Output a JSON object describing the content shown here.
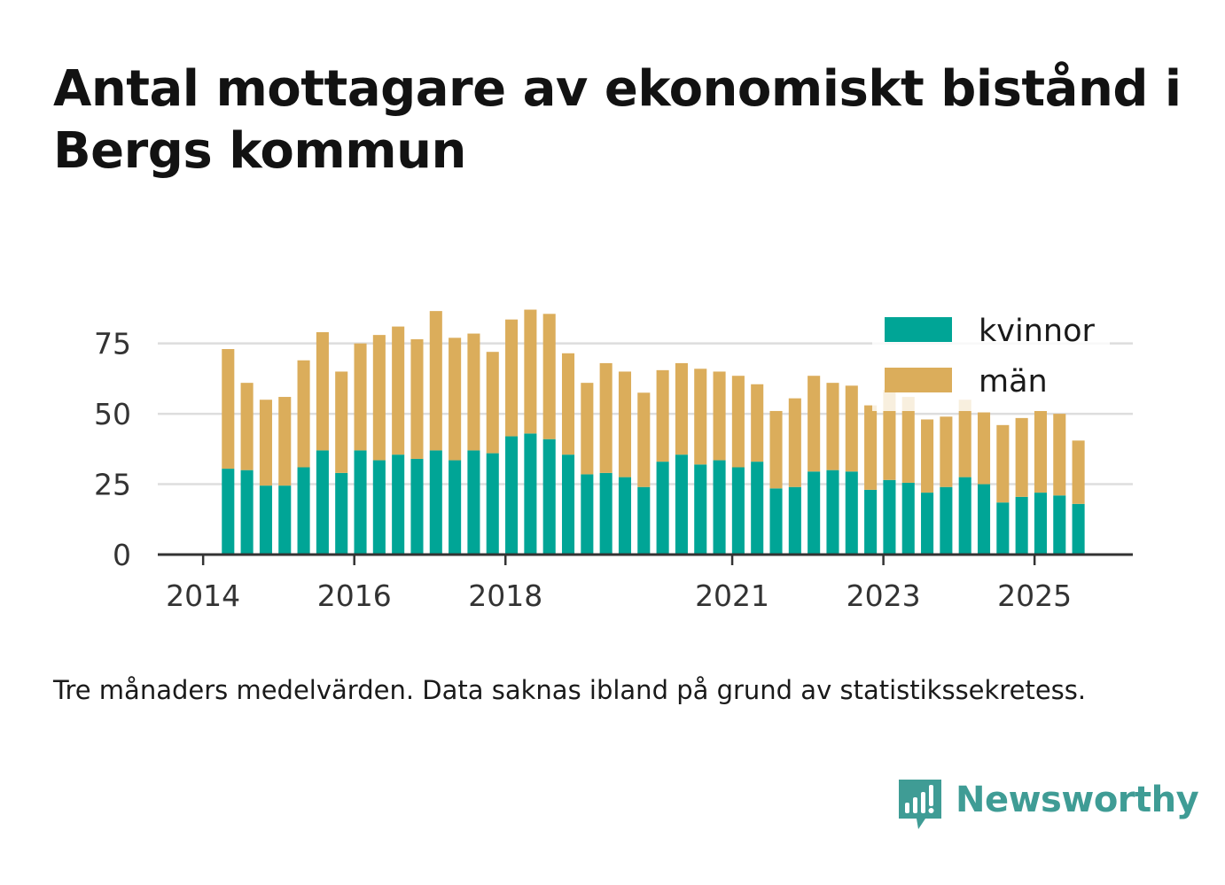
{
  "title": "Antal mottagare av ekonomiskt bistånd i Bergs kommun",
  "footnote": "Tre månaders medelvärden. Data saknas ibland på grund av statistikssekretess.",
  "brand": {
    "name": "Newsworthy",
    "icon": "newsworthy-logo-icon",
    "color": "#3f9c95"
  },
  "chart_data": {
    "type": "bar",
    "stacked": true,
    "title": "Antal mottagare av ekonomiskt bistånd i Bergs kommun",
    "xlabel": "",
    "ylabel": "",
    "ylim": [
      0,
      90
    ],
    "yticks": [
      0,
      25,
      50,
      75
    ],
    "grid": true,
    "legend_position": "top-right",
    "x_tick_labels": [
      {
        "label": "2014",
        "x": 2014.0
      },
      {
        "label": "2016",
        "x": 2016.0
      },
      {
        "label": "2018",
        "x": 2018.0
      },
      {
        "label": "2021",
        "x": 2021.0
      },
      {
        "label": "2023",
        "x": 2023.0
      },
      {
        "label": "2025",
        "x": 2025.0
      }
    ],
    "x_range": [
      2013.4,
      2026.3
    ],
    "periods": [
      2014.33,
      2014.58,
      2014.83,
      2015.08,
      2015.33,
      2015.58,
      2015.83,
      2016.08,
      2016.33,
      2016.58,
      2016.83,
      2017.08,
      2017.33,
      2017.58,
      2017.83,
      2018.08,
      2018.33,
      2018.58,
      2018.83,
      2019.08,
      2019.33,
      2019.58,
      2019.83,
      2020.08,
      2020.33,
      2020.58,
      2020.83,
      2021.08,
      2021.33,
      2021.58,
      2021.83,
      2022.08,
      2022.33,
      2022.58,
      2022.83,
      2023.08,
      2023.33,
      2023.58,
      2023.83,
      2024.08,
      2024.33,
      2024.58,
      2024.83,
      2025.08,
      2025.33,
      2025.58
    ],
    "series": [
      {
        "name": "kvinnor",
        "color": "#00a596",
        "values": [
          30.5,
          30,
          24.5,
          24.5,
          31,
          37,
          29,
          37,
          33.5,
          35.5,
          34,
          37,
          33.5,
          37,
          36,
          42,
          43,
          41,
          35.5,
          28.5,
          29,
          27.5,
          24,
          33,
          35.5,
          32,
          33.5,
          31,
          33,
          23.5,
          24,
          29.5,
          30,
          29.5,
          23,
          26.5,
          25.5,
          22,
          24,
          27.5,
          25,
          18.5,
          20.5,
          22,
          21,
          18
        ]
      },
      {
        "name": "män",
        "color": "#dbad5b",
        "values": [
          42.5,
          31,
          30.5,
          31.5,
          38,
          42,
          36,
          38,
          44.5,
          45.5,
          42.5,
          49.5,
          43.5,
          41.5,
          36,
          41.5,
          44,
          44.5,
          36,
          32.5,
          39,
          37.5,
          33.5,
          32.5,
          32.5,
          34,
          31.5,
          32.5,
          27.5,
          27.5,
          31.5,
          34,
          31,
          30.5,
          30,
          32,
          30.5,
          26,
          25,
          27.5,
          25.5,
          27.5,
          28,
          29,
          29,
          22.5
        ]
      }
    ]
  }
}
